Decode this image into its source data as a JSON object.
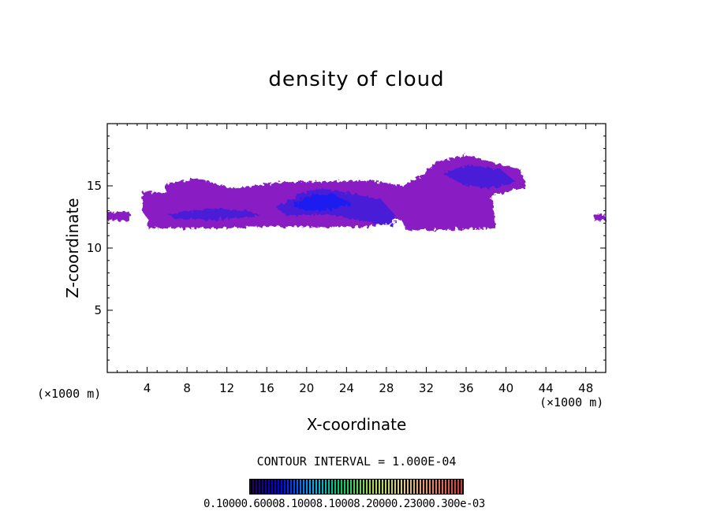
{
  "chart_data": {
    "type": "heatmap",
    "title": "density of cloud",
    "xlabel": "X-coordinate",
    "ylabel": "Z-coordinate",
    "x_unit": "(×1000 m)",
    "z_unit": "(×1000 m)",
    "xlim": [
      0,
      50
    ],
    "ylim": [
      0,
      20
    ],
    "xticks": [
      4,
      8,
      12,
      16,
      20,
      24,
      28,
      32,
      36,
      40,
      44,
      48
    ],
    "yticks": [
      5,
      10,
      15
    ],
    "contour_interval": "CONTOUR INTERVAL = 1.000E-04",
    "colorbar_labels": "0.10000.60008.10008.10008.20000.23000.300e-03",
    "colorbar_colors": [
      "#2a0050",
      "#0000ff",
      "#00aaff",
      "#00cc66",
      "#aadd44",
      "#ddcc88",
      "#e88060",
      "#cc3030"
    ],
    "regions": [
      {
        "name": "left-edge",
        "polygon": [
          [
            0,
            12.2
          ],
          [
            2.2,
            12.2
          ],
          [
            2.3,
            12.9
          ],
          [
            0,
            12.9
          ]
        ],
        "level": "low"
      },
      {
        "name": "main-band",
        "polygon": [
          [
            3.5,
            14.6
          ],
          [
            5.8,
            14.4
          ],
          [
            6.0,
            15.2
          ],
          [
            9.0,
            15.6
          ],
          [
            12.5,
            14.8
          ],
          [
            17.5,
            15.3
          ],
          [
            26.5,
            15.4
          ],
          [
            29.5,
            15.0
          ],
          [
            31.5,
            15.8
          ],
          [
            33.0,
            16.9
          ],
          [
            36.0,
            17.5
          ],
          [
            39.0,
            16.8
          ],
          [
            41.5,
            16.3
          ],
          [
            42.0,
            14.9
          ],
          [
            38.5,
            14.2
          ],
          [
            39.0,
            11.6
          ],
          [
            30.0,
            11.4
          ],
          [
            29.5,
            12.3
          ],
          [
            26.0,
            11.7
          ],
          [
            18.0,
            11.7
          ],
          [
            9.0,
            11.6
          ],
          [
            4.0,
            11.6
          ],
          [
            4.1,
            12.3
          ],
          [
            3.5,
            13.0
          ]
        ],
        "level": "low"
      },
      {
        "name": "core-20km",
        "polygon": [
          [
            17.0,
            13.2
          ],
          [
            19.0,
            14.3
          ],
          [
            21.5,
            14.8
          ],
          [
            24.5,
            14.4
          ],
          [
            27.5,
            13.9
          ],
          [
            29.0,
            12.5
          ],
          [
            28.5,
            11.8
          ],
          [
            25.5,
            12.2
          ],
          [
            22.0,
            12.7
          ],
          [
            18.0,
            12.6
          ]
        ],
        "level": "mid"
      },
      {
        "name": "core-peak",
        "polygon": [
          [
            18.5,
            13.4
          ],
          [
            20.5,
            14.3
          ],
          [
            22.5,
            14.4
          ],
          [
            24.5,
            13.6
          ],
          [
            22.5,
            13.1
          ],
          [
            20.0,
            13.0
          ]
        ],
        "level": "high"
      },
      {
        "name": "upper-right",
        "polygon": [
          [
            33.5,
            16.0
          ],
          [
            36.5,
            16.7
          ],
          [
            39.5,
            16.3
          ],
          [
            41.0,
            15.3
          ],
          [
            38.5,
            14.8
          ],
          [
            36.0,
            15.0
          ]
        ],
        "level": "mid"
      },
      {
        "name": "lower-left-streak",
        "polygon": [
          [
            6.0,
            12.7
          ],
          [
            10.0,
            13.2
          ],
          [
            14.0,
            13.0
          ],
          [
            15.5,
            12.6
          ],
          [
            11.0,
            12.3
          ],
          [
            7.0,
            12.3
          ]
        ],
        "level": "mid"
      },
      {
        "name": "right-edge",
        "polygon": [
          [
            48.8,
            12.2
          ],
          [
            50,
            12.2
          ],
          [
            50,
            12.7
          ],
          [
            48.9,
            12.7
          ]
        ],
        "level": "low"
      }
    ]
  }
}
